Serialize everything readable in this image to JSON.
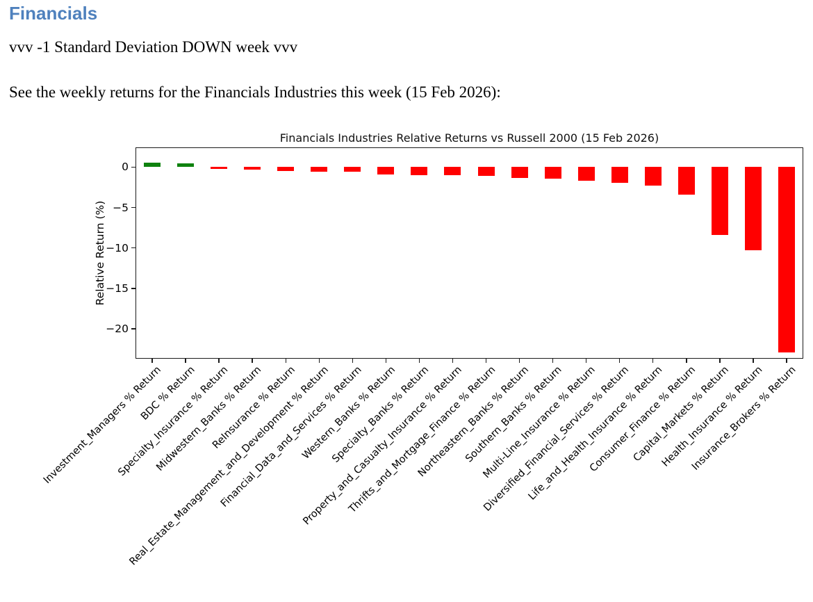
{
  "page": {
    "heading": "Financials",
    "subheading": "vvv -1 Standard Deviation DOWN week vvv",
    "intro": "See the weekly returns for the Financials Industries this week (15 Feb 2026):"
  },
  "colors": {
    "heading": "#4f81bd",
    "positive_bar": "#0f820f",
    "negative_bar": "#ff0000",
    "axis": "#1a1a1a",
    "text": "#000000"
  },
  "chart_data": {
    "type": "bar",
    "title": "Financials Industries Relative Returns vs Russell 2000 (15 Feb 2026)",
    "xlabel": "",
    "ylabel": "Relative Return (%)",
    "categories": [
      "Investment_Managers % Return",
      "BDC % Return",
      "Specialty_Insurance % Return",
      "Midwestern_Banks % Return",
      "ReInsurance % Return",
      "Real_Estate_Management_and_Development % Return",
      "Financial_Data_and_Services % Return",
      "Western_Banks % Return",
      "Specialty_Banks % Return",
      "Property_and_Casualty_Insurance % Return",
      "Thrifts_and_Mortgage_Finance % Return",
      "Northeastern_Banks % Return",
      "Southern_Banks % Return",
      "Multi-Line_Insurance % Return",
      "Diversified_Financial_Services % Return",
      "Life_and_Health_Insurance % Return",
      "Consumer_Finance % Return",
      "Capital_Markets % Return",
      "Health_Insurance % Return",
      "Insurance_Brokers % Return"
    ],
    "values": [
      0.6,
      0.5,
      -0.2,
      -0.3,
      -0.5,
      -0.6,
      -0.6,
      -0.9,
      -1.0,
      -1.0,
      -1.1,
      -1.3,
      -1.4,
      -1.7,
      -1.9,
      -2.3,
      -3.4,
      -8.4,
      -10.3,
      -22.9
    ],
    "ylim": [
      -23.7,
      2.45
    ],
    "yticks": [
      0,
      -5,
      -10,
      -15,
      -20
    ],
    "ytick_labels": [
      "0",
      "−5",
      "−10",
      "−15",
      "−20"
    ],
    "grid": false,
    "legend": null,
    "xtick_rotation": 45
  }
}
